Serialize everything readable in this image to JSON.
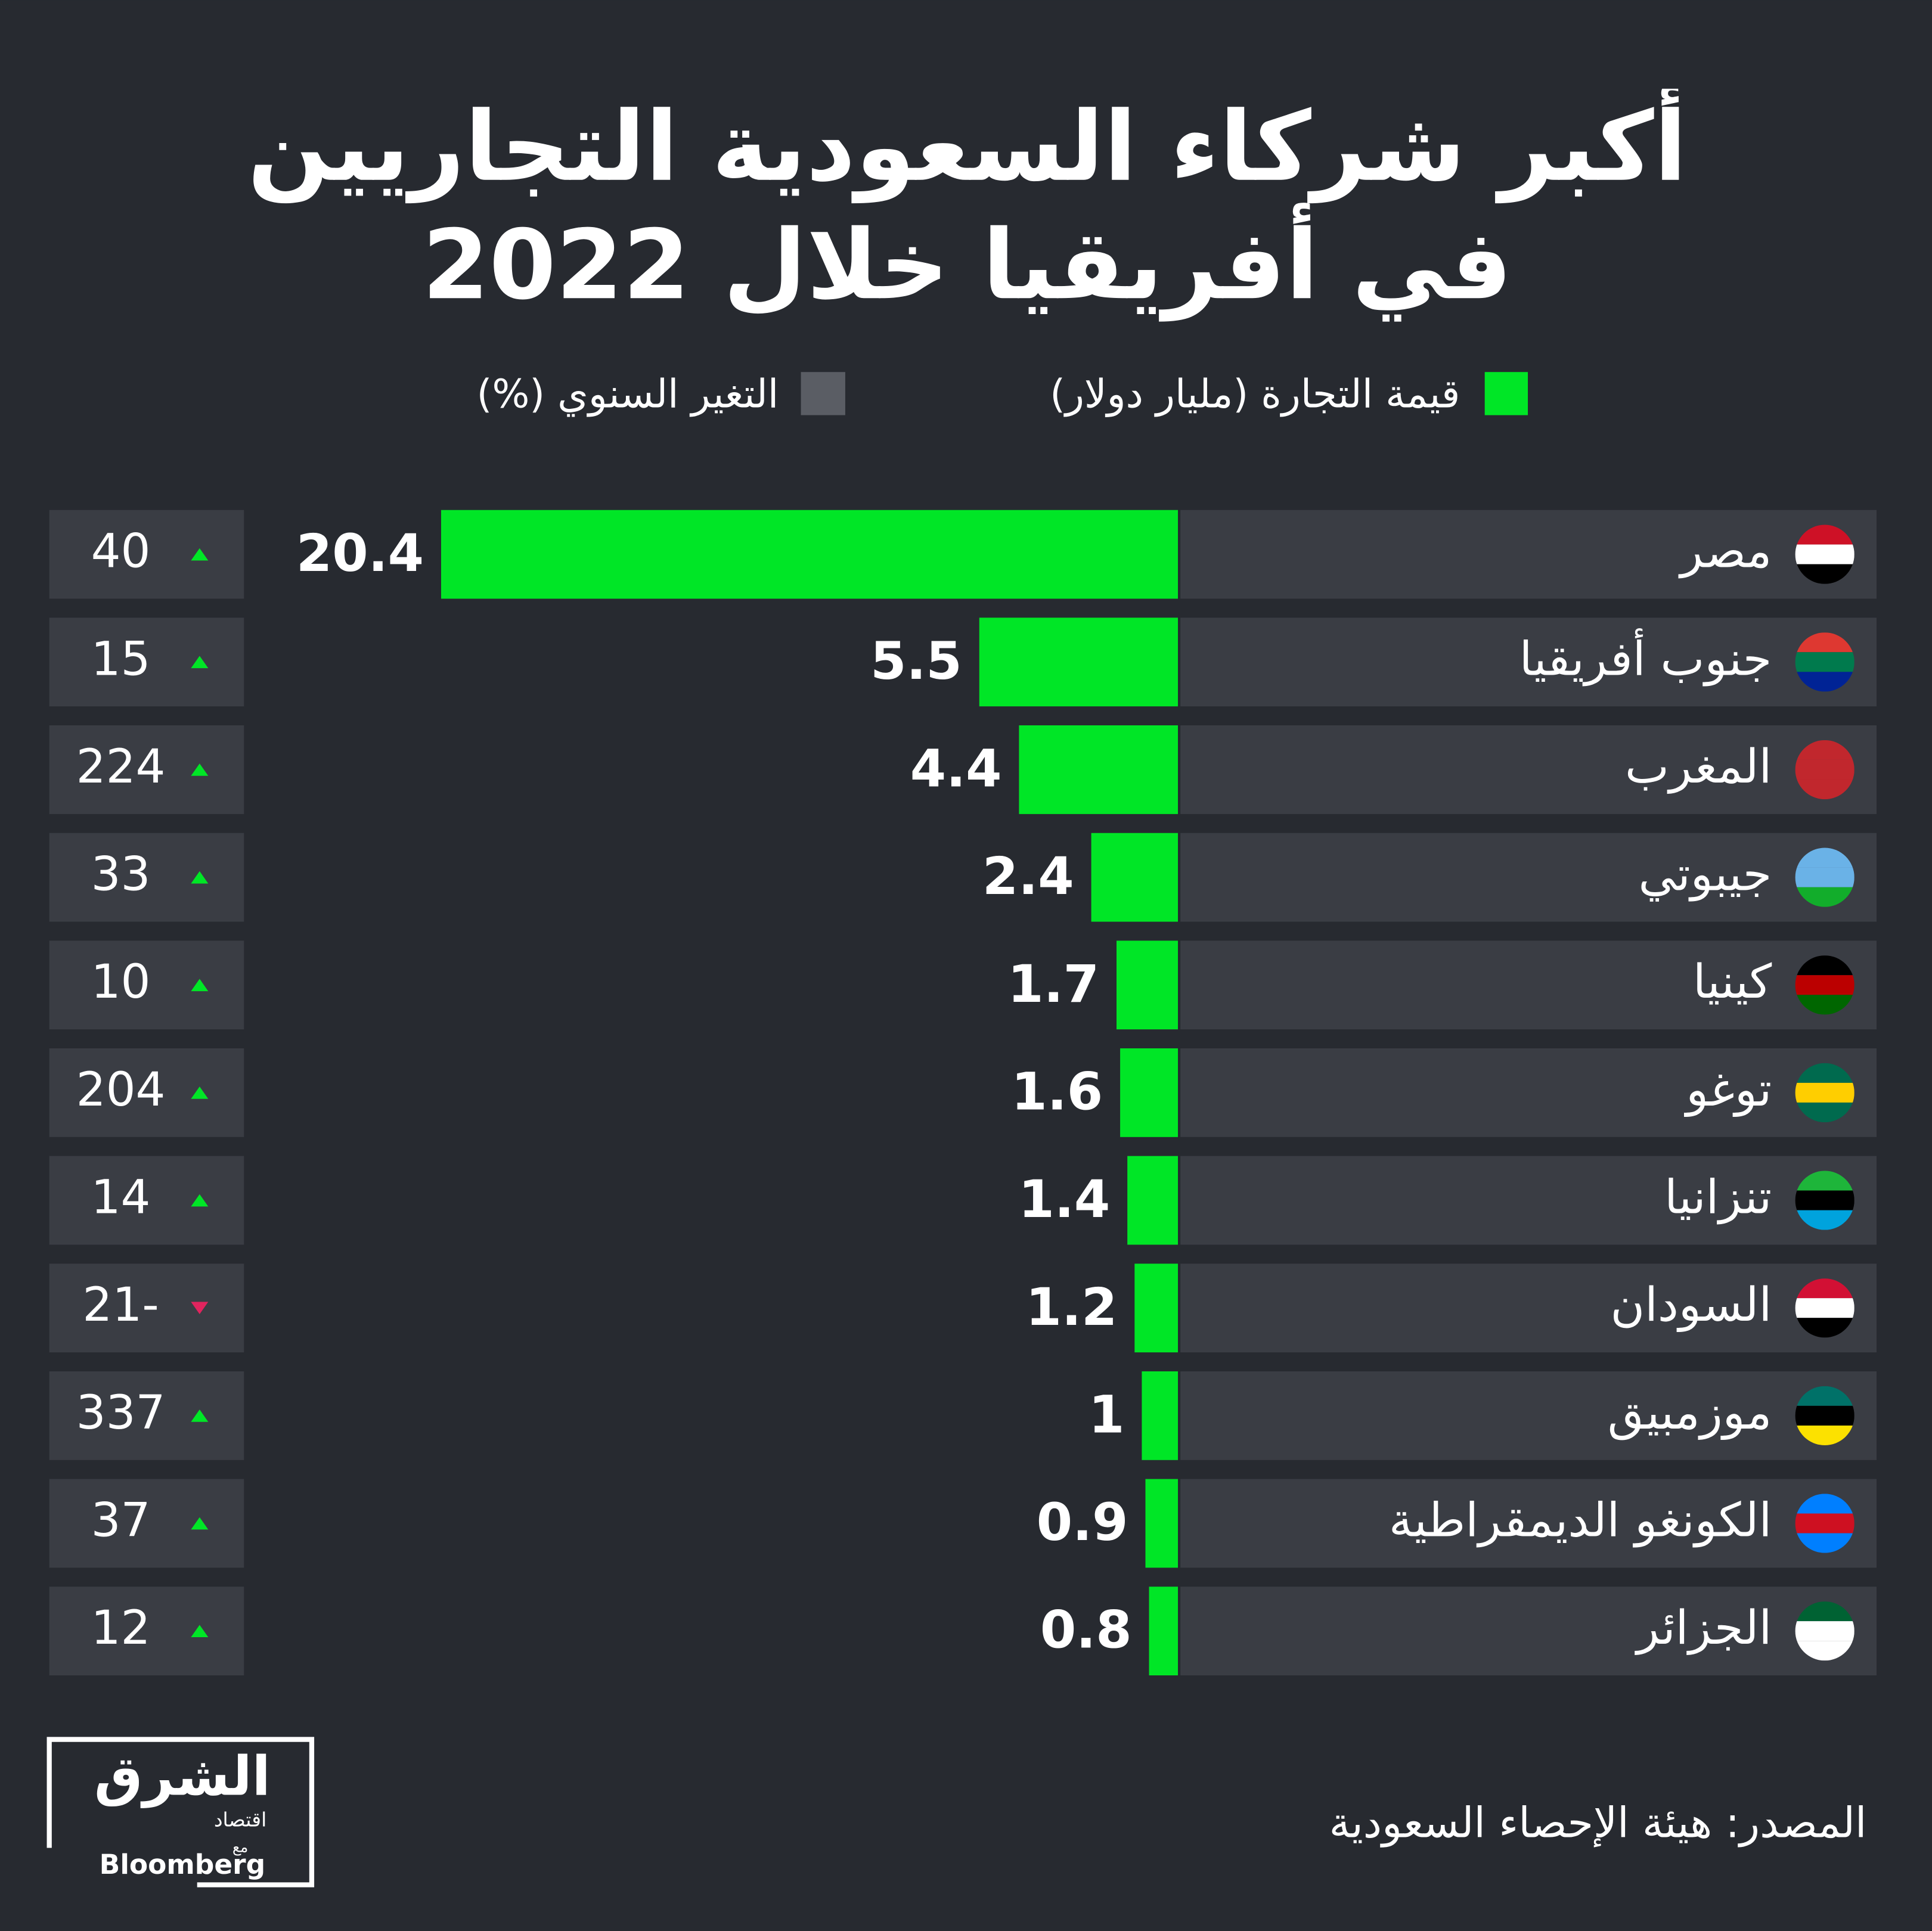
{
  "chart_data": {
    "type": "bar",
    "orientation": "horizontal",
    "title": "أكبر شركاء السعودية التجاريين في أفريقيا خلال 2022",
    "categories": [
      "مصر",
      "جنوب أفريقيا",
      "المغرب",
      "جيبوتي",
      "كينيا",
      "توغو",
      "تنزانيا",
      "السودان",
      "موزمبيق",
      "الكونغو الديمقراطية",
      "الجزائر"
    ],
    "series": [
      {
        "name": "قيمة التجارة (مليار دولار)",
        "color": "#00e626",
        "values": [
          20.4,
          5.5,
          4.4,
          2.4,
          1.7,
          1.6,
          1.4,
          1.2,
          1,
          0.9,
          0.8
        ]
      },
      {
        "name": "التغير السنوي (%)",
        "color": "#5a5d64",
        "values": [
          40,
          15,
          224,
          33,
          10,
          204,
          14,
          -21,
          337,
          37,
          12
        ],
        "value_labels": [
          "40",
          "15",
          "224",
          "33",
          "10",
          "204",
          "14",
          "21-",
          "337",
          "37",
          "12"
        ]
      }
    ],
    "source": "المصدر: هيئة الإحصاء السعودية",
    "logo": {
      "name": "الشرق",
      "sub": "اقتصاد",
      "with": "مع",
      "partner": "Bloomberg"
    }
  }
}
